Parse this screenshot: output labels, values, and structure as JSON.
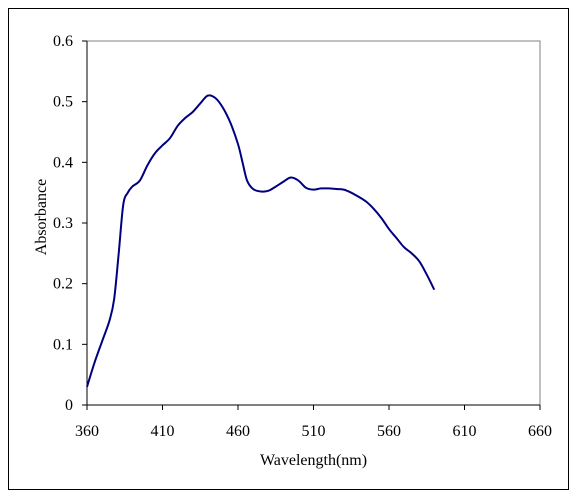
{
  "chart_data": {
    "type": "line",
    "title": "",
    "xlabel": "Wavelength(nm)",
    "ylabel": "Absorbance",
    "xlim": [
      360,
      660
    ],
    "ylim": [
      0,
      0.6
    ],
    "x_ticks": [
      360,
      410,
      460,
      510,
      560,
      610,
      660
    ],
    "y_ticks": [
      "0",
      "0.1",
      "0.2",
      "0.3",
      "0.4",
      "0.5",
      "0.6"
    ],
    "grid": false,
    "legend": "none",
    "series": [
      {
        "color": "#000080",
        "points": [
          [
            360,
            0.03
          ],
          [
            365,
            0.07
          ],
          [
            370,
            0.105
          ],
          [
            375,
            0.14
          ],
          [
            378,
            0.175
          ],
          [
            381,
            0.25
          ],
          [
            384,
            0.33
          ],
          [
            387,
            0.35
          ],
          [
            390,
            0.36
          ],
          [
            395,
            0.37
          ],
          [
            400,
            0.395
          ],
          [
            405,
            0.415
          ],
          [
            410,
            0.428
          ],
          [
            415,
            0.44
          ],
          [
            420,
            0.46
          ],
          [
            425,
            0.473
          ],
          [
            430,
            0.483
          ],
          [
            435,
            0.497
          ],
          [
            440,
            0.51
          ],
          [
            445,
            0.506
          ],
          [
            450,
            0.49
          ],
          [
            455,
            0.465
          ],
          [
            460,
            0.43
          ],
          [
            463,
            0.4
          ],
          [
            466,
            0.37
          ],
          [
            470,
            0.356
          ],
          [
            475,
            0.352
          ],
          [
            480,
            0.353
          ],
          [
            485,
            0.36
          ],
          [
            490,
            0.368
          ],
          [
            495,
            0.375
          ],
          [
            500,
            0.37
          ],
          [
            505,
            0.358
          ],
          [
            510,
            0.355
          ],
          [
            515,
            0.357
          ],
          [
            520,
            0.357
          ],
          [
            525,
            0.356
          ],
          [
            530,
            0.355
          ],
          [
            535,
            0.35
          ],
          [
            540,
            0.343
          ],
          [
            545,
            0.335
          ],
          [
            550,
            0.323
          ],
          [
            555,
            0.308
          ],
          [
            560,
            0.29
          ],
          [
            565,
            0.275
          ],
          [
            570,
            0.26
          ],
          [
            575,
            0.25
          ],
          [
            580,
            0.237
          ],
          [
            585,
            0.215
          ],
          [
            590,
            0.19
          ]
        ]
      }
    ]
  }
}
